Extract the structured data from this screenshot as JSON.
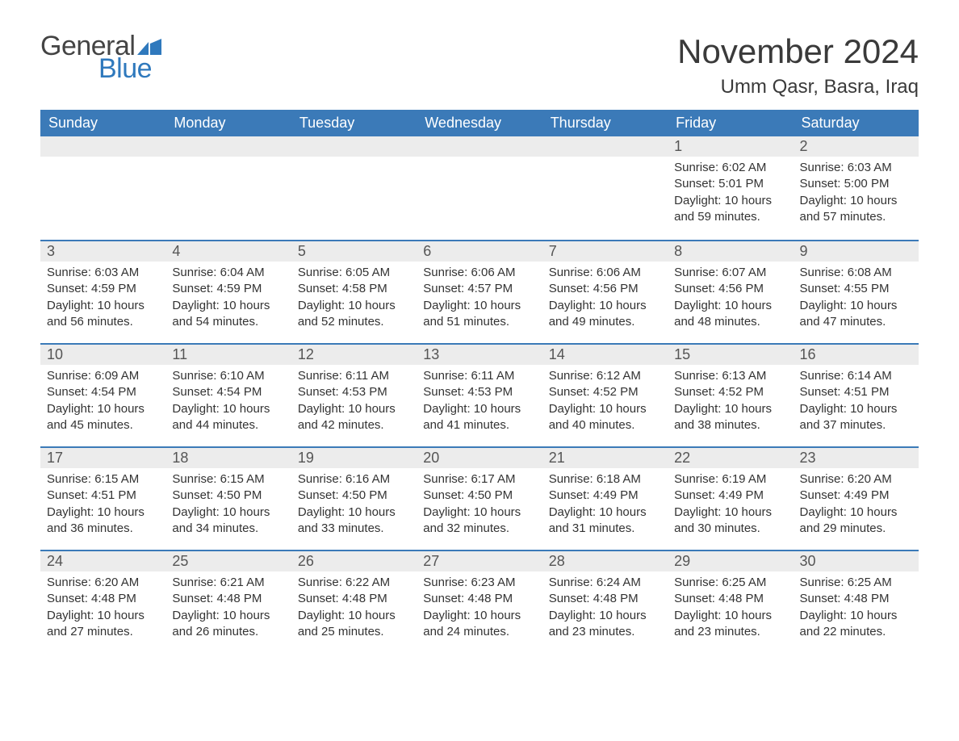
{
  "brand": {
    "word1": "General",
    "word2": "Blue",
    "flag_color": "#2f79bd"
  },
  "title": "November 2024",
  "location": "Umm Qasr, Basra, Iraq",
  "colors": {
    "header_bg": "#3b7ab8",
    "header_text": "#ffffff",
    "daynum_bg": "#ececec",
    "daynum_text": "#555555",
    "body_text": "#333333",
    "rule": "#3b7ab8",
    "page_bg": "#ffffff",
    "logo_blue": "#2f79bd",
    "logo_gray": "#444444"
  },
  "typography": {
    "title_fontsize": 42,
    "location_fontsize": 24,
    "weekday_fontsize": 18,
    "daynum_fontsize": 18,
    "body_fontsize": 15,
    "logo_fontsize": 34
  },
  "weekdays": [
    "Sunday",
    "Monday",
    "Tuesday",
    "Wednesday",
    "Thursday",
    "Friday",
    "Saturday"
  ],
  "weeks": [
    [
      null,
      null,
      null,
      null,
      null,
      {
        "n": "1",
        "sr": "6:02 AM",
        "ss": "5:01 PM",
        "dl": "10 hours and 59 minutes."
      },
      {
        "n": "2",
        "sr": "6:03 AM",
        "ss": "5:00 PM",
        "dl": "10 hours and 57 minutes."
      }
    ],
    [
      {
        "n": "3",
        "sr": "6:03 AM",
        "ss": "4:59 PM",
        "dl": "10 hours and 56 minutes."
      },
      {
        "n": "4",
        "sr": "6:04 AM",
        "ss": "4:59 PM",
        "dl": "10 hours and 54 minutes."
      },
      {
        "n": "5",
        "sr": "6:05 AM",
        "ss": "4:58 PM",
        "dl": "10 hours and 52 minutes."
      },
      {
        "n": "6",
        "sr": "6:06 AM",
        "ss": "4:57 PM",
        "dl": "10 hours and 51 minutes."
      },
      {
        "n": "7",
        "sr": "6:06 AM",
        "ss": "4:56 PM",
        "dl": "10 hours and 49 minutes."
      },
      {
        "n": "8",
        "sr": "6:07 AM",
        "ss": "4:56 PM",
        "dl": "10 hours and 48 minutes."
      },
      {
        "n": "9",
        "sr": "6:08 AM",
        "ss": "4:55 PM",
        "dl": "10 hours and 47 minutes."
      }
    ],
    [
      {
        "n": "10",
        "sr": "6:09 AM",
        "ss": "4:54 PM",
        "dl": "10 hours and 45 minutes."
      },
      {
        "n": "11",
        "sr": "6:10 AM",
        "ss": "4:54 PM",
        "dl": "10 hours and 44 minutes."
      },
      {
        "n": "12",
        "sr": "6:11 AM",
        "ss": "4:53 PM",
        "dl": "10 hours and 42 minutes."
      },
      {
        "n": "13",
        "sr": "6:11 AM",
        "ss": "4:53 PM",
        "dl": "10 hours and 41 minutes."
      },
      {
        "n": "14",
        "sr": "6:12 AM",
        "ss": "4:52 PM",
        "dl": "10 hours and 40 minutes."
      },
      {
        "n": "15",
        "sr": "6:13 AM",
        "ss": "4:52 PM",
        "dl": "10 hours and 38 minutes."
      },
      {
        "n": "16",
        "sr": "6:14 AM",
        "ss": "4:51 PM",
        "dl": "10 hours and 37 minutes."
      }
    ],
    [
      {
        "n": "17",
        "sr": "6:15 AM",
        "ss": "4:51 PM",
        "dl": "10 hours and 36 minutes."
      },
      {
        "n": "18",
        "sr": "6:15 AM",
        "ss": "4:50 PM",
        "dl": "10 hours and 34 minutes."
      },
      {
        "n": "19",
        "sr": "6:16 AM",
        "ss": "4:50 PM",
        "dl": "10 hours and 33 minutes."
      },
      {
        "n": "20",
        "sr": "6:17 AM",
        "ss": "4:50 PM",
        "dl": "10 hours and 32 minutes."
      },
      {
        "n": "21",
        "sr": "6:18 AM",
        "ss": "4:49 PM",
        "dl": "10 hours and 31 minutes."
      },
      {
        "n": "22",
        "sr": "6:19 AM",
        "ss": "4:49 PM",
        "dl": "10 hours and 30 minutes."
      },
      {
        "n": "23",
        "sr": "6:20 AM",
        "ss": "4:49 PM",
        "dl": "10 hours and 29 minutes."
      }
    ],
    [
      {
        "n": "24",
        "sr": "6:20 AM",
        "ss": "4:48 PM",
        "dl": "10 hours and 27 minutes."
      },
      {
        "n": "25",
        "sr": "6:21 AM",
        "ss": "4:48 PM",
        "dl": "10 hours and 26 minutes."
      },
      {
        "n": "26",
        "sr": "6:22 AM",
        "ss": "4:48 PM",
        "dl": "10 hours and 25 minutes."
      },
      {
        "n": "27",
        "sr": "6:23 AM",
        "ss": "4:48 PM",
        "dl": "10 hours and 24 minutes."
      },
      {
        "n": "28",
        "sr": "6:24 AM",
        "ss": "4:48 PM",
        "dl": "10 hours and 23 minutes."
      },
      {
        "n": "29",
        "sr": "6:25 AM",
        "ss": "4:48 PM",
        "dl": "10 hours and 23 minutes."
      },
      {
        "n": "30",
        "sr": "6:25 AM",
        "ss": "4:48 PM",
        "dl": "10 hours and 22 minutes."
      }
    ]
  ],
  "labels": {
    "sunrise": "Sunrise: ",
    "sunset": "Sunset: ",
    "daylight": "Daylight: "
  }
}
